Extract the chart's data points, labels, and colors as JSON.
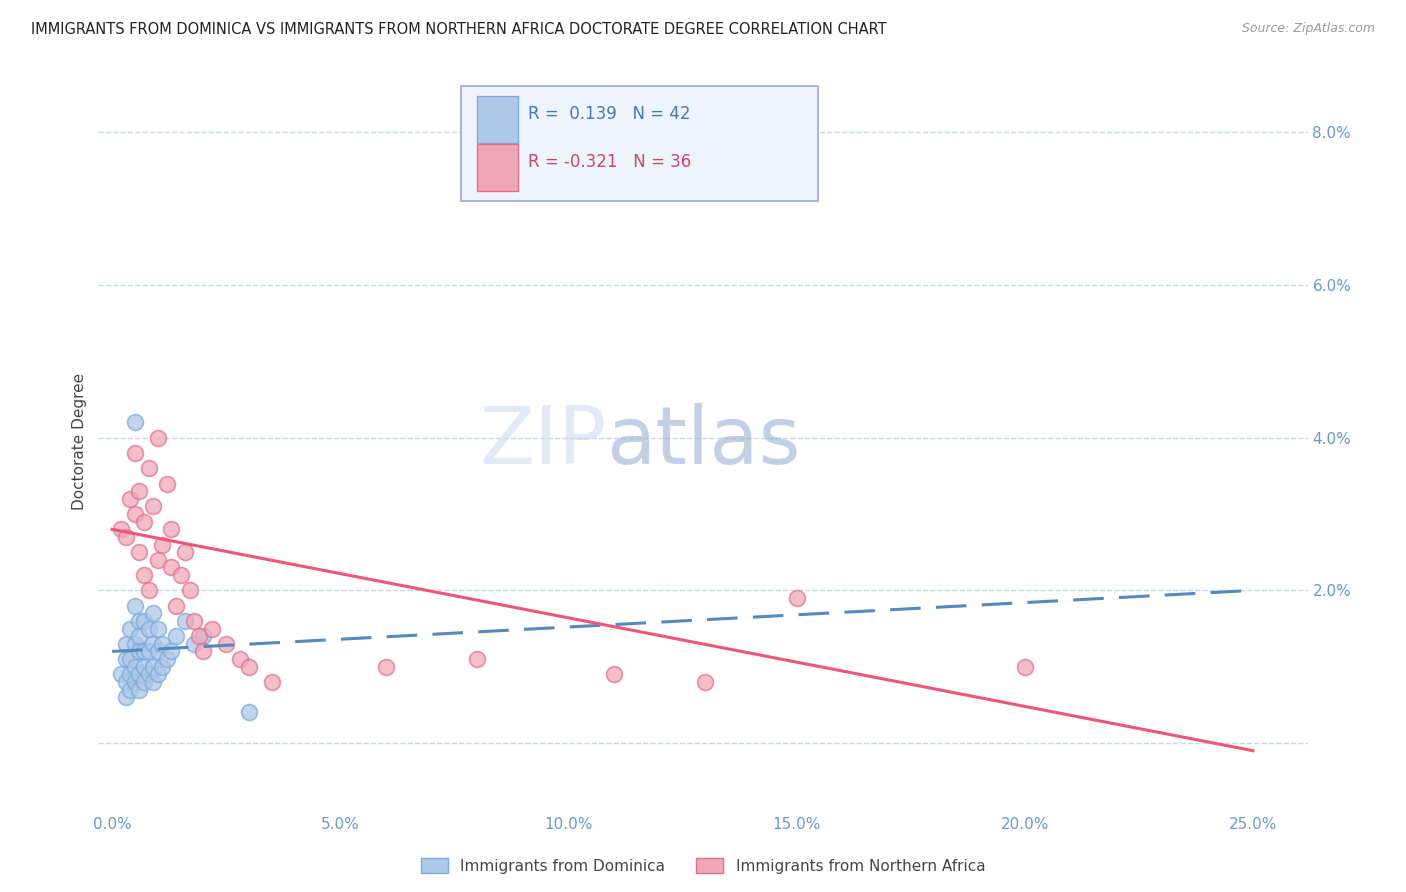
{
  "title": "IMMIGRANTS FROM DOMINICA VS IMMIGRANTS FROM NORTHERN AFRICA DOCTORATE DEGREE CORRELATION CHART",
  "source": "Source: ZipAtlas.com",
  "ylabel": "Doctorate Degree",
  "xlabel_ticks": [
    "0.0%",
    "5.0%",
    "10.0%",
    "15.0%",
    "20.0%",
    "25.0%"
  ],
  "xlabel_vals": [
    0.0,
    0.05,
    0.1,
    0.15,
    0.2,
    0.25
  ],
  "ylabel_ticks": [
    "2.0%",
    "4.0%",
    "6.0%",
    "8.0%"
  ],
  "ylabel_vals": [
    0.02,
    0.04,
    0.06,
    0.08
  ],
  "grid_vals": [
    0.0,
    0.02,
    0.04,
    0.06,
    0.08
  ],
  "xlim": [
    -0.003,
    0.262
  ],
  "ylim": [
    -0.009,
    0.088
  ],
  "legend1_label": "Immigrants from Dominica",
  "legend2_label": "Immigrants from Northern Africa",
  "R1": "0.139",
  "N1": "42",
  "R2": "-0.321",
  "N2": "36",
  "color1": "#aec8e8",
  "color2": "#f0a8b8",
  "color1_edge": "#7aaadd",
  "color2_edge": "#e07090",
  "line1_color": "#5588bb",
  "line2_color": "#ee5577",
  "watermark_zip": "ZIP",
  "watermark_atlas": "atlas",
  "background_color": "#ffffff",
  "scatter1_x": [
    0.002,
    0.003,
    0.003,
    0.003,
    0.003,
    0.004,
    0.004,
    0.004,
    0.004,
    0.005,
    0.005,
    0.005,
    0.005,
    0.006,
    0.006,
    0.006,
    0.006,
    0.006,
    0.007,
    0.007,
    0.007,
    0.007,
    0.008,
    0.008,
    0.008,
    0.009,
    0.009,
    0.009,
    0.009,
    0.01,
    0.01,
    0.01,
    0.011,
    0.011,
    0.012,
    0.013,
    0.014,
    0.016,
    0.018,
    0.02,
    0.005,
    0.03
  ],
  "scatter1_y": [
    0.009,
    0.006,
    0.008,
    0.011,
    0.013,
    0.007,
    0.009,
    0.011,
    0.015,
    0.008,
    0.01,
    0.013,
    0.018,
    0.007,
    0.009,
    0.012,
    0.014,
    0.016,
    0.008,
    0.01,
    0.012,
    0.016,
    0.009,
    0.012,
    0.015,
    0.008,
    0.01,
    0.013,
    0.017,
    0.009,
    0.012,
    0.015,
    0.01,
    0.013,
    0.011,
    0.012,
    0.014,
    0.016,
    0.013,
    0.014,
    0.042,
    0.004
  ],
  "scatter2_x": [
    0.002,
    0.003,
    0.004,
    0.005,
    0.005,
    0.006,
    0.006,
    0.007,
    0.007,
    0.008,
    0.008,
    0.009,
    0.01,
    0.01,
    0.011,
    0.012,
    0.013,
    0.013,
    0.014,
    0.015,
    0.016,
    0.017,
    0.018,
    0.019,
    0.02,
    0.022,
    0.025,
    0.028,
    0.03,
    0.035,
    0.06,
    0.08,
    0.11,
    0.13,
    0.15,
    0.2
  ],
  "scatter2_y": [
    0.028,
    0.027,
    0.032,
    0.03,
    0.038,
    0.025,
    0.033,
    0.022,
    0.029,
    0.02,
    0.036,
    0.031,
    0.024,
    0.04,
    0.026,
    0.034,
    0.023,
    0.028,
    0.018,
    0.022,
    0.025,
    0.02,
    0.016,
    0.014,
    0.012,
    0.015,
    0.013,
    0.011,
    0.01,
    0.008,
    0.01,
    0.011,
    0.009,
    0.008,
    0.019,
    0.01
  ],
  "trendline1_x": [
    0.0,
    0.25
  ],
  "trendline1_y": [
    0.012,
    0.02
  ],
  "trendline2_x": [
    0.0,
    0.25
  ],
  "trendline2_y": [
    0.028,
    -0.001
  ]
}
